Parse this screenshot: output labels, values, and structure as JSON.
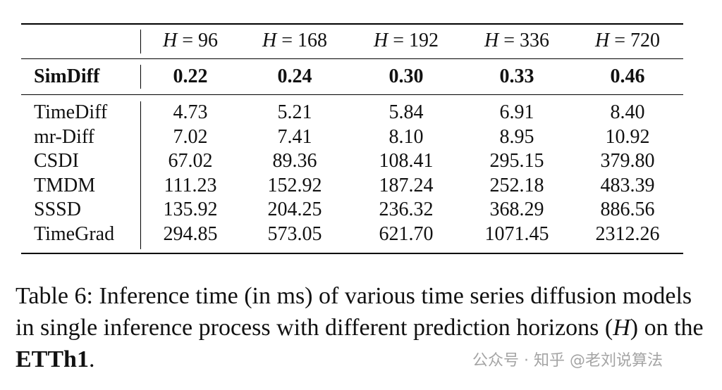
{
  "table": {
    "header": [
      "H = 96",
      "H = 168",
      "H = 192",
      "H = 336",
      "H = 720"
    ],
    "highlight": {
      "name": "SimDiff",
      "values": [
        "0.22",
        "0.24",
        "0.30",
        "0.33",
        "0.46"
      ]
    },
    "rows": [
      {
        "name": "TimeDiff",
        "values": [
          "4.73",
          "5.21",
          "5.84",
          "6.91",
          "8.40"
        ]
      },
      {
        "name": "mr-Diff",
        "values": [
          "7.02",
          "7.41",
          "8.10",
          "8.95",
          "10.92"
        ]
      },
      {
        "name": "CSDI",
        "values": [
          "67.02",
          "89.36",
          "108.41",
          "295.15",
          "379.80"
        ]
      },
      {
        "name": "TMDM",
        "values": [
          "111.23",
          "152.92",
          "187.24",
          "252.18",
          "483.39"
        ]
      },
      {
        "name": "SSSD",
        "values": [
          "135.92",
          "204.25",
          "236.32",
          "368.29",
          "886.56"
        ]
      },
      {
        "name": "TimeGrad",
        "values": [
          "294.85",
          "573.05",
          "621.70",
          "1071.45",
          "2312.26"
        ]
      }
    ]
  },
  "caption": [
    "Table 6: Inference time (in ms) of various time series diffusion models in single inference process with different prediction horizons (",
    "H",
    ") on the ",
    "ETTh1",
    "."
  ],
  "watermark": "公众号 · 知乎 @老刘说算法"
}
